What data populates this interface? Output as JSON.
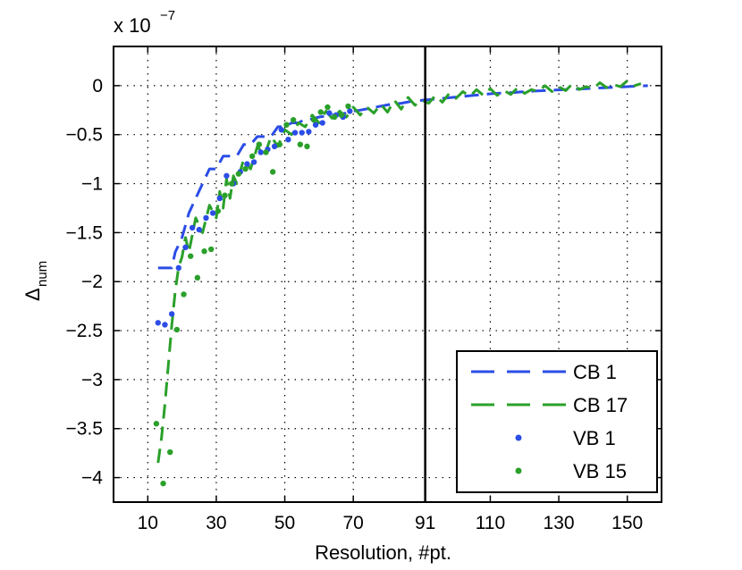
{
  "chart_data": {
    "type": "line",
    "title": "",
    "xlabel": "Resolution, #pt.",
    "ylabel_main": "Δ",
    "ylabel_sub": "num",
    "exponent_label": {
      "base": "x 10",
      "power": "−7"
    },
    "xlim": [
      0,
      160
    ],
    "ylim": [
      -4.25,
      0.4
    ],
    "x_ticks": [
      10,
      30,
      50,
      70,
      91,
      110,
      130,
      150
    ],
    "x_tick_labels": [
      "10",
      "30",
      "50",
      "70",
      "91",
      "110",
      "130",
      "150"
    ],
    "y_ticks": [
      0,
      -0.5,
      -1,
      -1.5,
      -2,
      -2.5,
      -3,
      -3.5,
      -4
    ],
    "y_tick_labels": [
      "0",
      "−0.5",
      "−1",
      "−1.5",
      "−2",
      "−2.5",
      "−3",
      "−3.5",
      "−4"
    ],
    "grid": true,
    "vertical_marker_x": 91,
    "legend_position": "bottom-right",
    "colors": {
      "blue": "#2b4de6",
      "green": "#2aa02a",
      "axis": "#000000"
    },
    "series": [
      {
        "name": "CB 1",
        "style": "dashed",
        "color": "#2b4de6",
        "x": [
          13,
          15,
          17,
          18,
          20,
          22,
          24,
          26,
          28,
          30,
          32,
          34,
          36,
          38,
          40,
          42,
          44,
          46,
          48,
          50,
          52,
          54,
          56,
          58,
          60,
          62,
          64,
          66,
          68,
          70,
          72,
          75,
          78,
          81,
          84,
          87,
          90,
          93,
          96,
          99,
          102,
          105,
          108,
          111,
          114,
          117,
          120,
          123,
          126,
          129,
          132,
          135,
          138,
          141,
          144,
          147,
          150,
          153,
          156
        ],
        "y": [
          -1.86,
          -1.86,
          -1.86,
          -1.7,
          -1.55,
          -1.3,
          -1.15,
          -1.0,
          -0.85,
          -0.85,
          -0.72,
          -0.72,
          -0.72,
          -0.6,
          -0.6,
          -0.52,
          -0.52,
          -0.52,
          -0.42,
          -0.42,
          -0.38,
          -0.38,
          -0.34,
          -0.34,
          -0.32,
          -0.31,
          -0.3,
          -0.29,
          -0.28,
          -0.26,
          -0.25,
          -0.23,
          -0.21,
          -0.19,
          -0.18,
          -0.16,
          -0.15,
          -0.14,
          -0.13,
          -0.12,
          -0.11,
          -0.1,
          -0.09,
          -0.08,
          -0.075,
          -0.07,
          -0.06,
          -0.055,
          -0.05,
          -0.045,
          -0.04,
          -0.035,
          -0.03,
          -0.025,
          -0.02,
          -0.015,
          -0.01,
          -0.005,
          0.0
        ]
      },
      {
        "name": "CB 17",
        "style": "dashed",
        "color": "#2aa02a",
        "x": [
          13,
          14,
          15,
          16,
          17,
          18,
          19,
          20,
          21,
          22,
          24,
          26,
          28,
          30,
          31,
          32,
          33,
          34,
          35,
          36,
          38,
          40,
          42,
          44,
          46,
          48,
          50,
          52,
          54,
          56,
          58,
          60,
          62,
          64,
          66,
          68,
          70,
          72,
          74,
          76,
          78,
          80,
          82,
          84,
          86,
          88,
          90,
          92,
          94,
          96,
          98,
          100,
          102,
          104,
          106,
          108,
          110,
          112,
          114,
          116,
          118,
          120,
          122,
          124,
          126,
          128,
          130,
          132,
          134,
          136,
          138,
          140,
          142,
          144,
          146,
          148,
          150,
          152,
          154
        ],
        "y": [
          -3.85,
          -3.6,
          -3.25,
          -2.85,
          -2.45,
          -2.1,
          -1.85,
          -1.75,
          -1.55,
          -1.7,
          -1.35,
          -1.5,
          -1.22,
          -1.35,
          -1.08,
          -1.25,
          -0.95,
          -1.15,
          -0.92,
          -1.0,
          -0.75,
          -0.85,
          -0.62,
          -0.72,
          -0.52,
          -0.62,
          -0.45,
          -0.5,
          -0.38,
          -0.42,
          -0.3,
          -0.38,
          -0.26,
          -0.34,
          -0.26,
          -0.32,
          -0.22,
          -0.3,
          -0.22,
          -0.28,
          -0.19,
          -0.27,
          -0.15,
          -0.24,
          -0.12,
          -0.2,
          -0.15,
          -0.18,
          -0.1,
          -0.17,
          -0.08,
          -0.13,
          -0.06,
          -0.11,
          -0.04,
          -0.1,
          -0.03,
          -0.1,
          -0.05,
          -0.09,
          -0.02,
          -0.08,
          -0.04,
          -0.06,
          0.0,
          -0.06,
          -0.01,
          -0.05,
          0.02,
          -0.04,
          -0.01,
          -0.03,
          0.03,
          -0.02,
          0.01,
          -0.01,
          0.05,
          0.0,
          0.02
        ]
      },
      {
        "name": "VB 1",
        "style": "markers",
        "color": "#2b4de6",
        "x": [
          13,
          15,
          17,
          19,
          21,
          23,
          25,
          27,
          29,
          31,
          33,
          35,
          37,
          39,
          41,
          43,
          45,
          47,
          49,
          51,
          53,
          55,
          57,
          59,
          61,
          63,
          65,
          67,
          69
        ],
        "y": [
          -2.42,
          -2.44,
          -2.33,
          -1.86,
          -1.65,
          -1.45,
          -1.47,
          -1.35,
          -1.3,
          -1.15,
          -0.92,
          -1.0,
          -0.88,
          -0.8,
          -0.78,
          -0.68,
          -0.65,
          -0.62,
          -0.45,
          -0.55,
          -0.48,
          -0.48,
          -0.47,
          -0.4,
          -0.38,
          -0.28,
          -0.3,
          -0.32,
          -0.26
        ]
      },
      {
        "name": "VB 15",
        "style": "markers",
        "color": "#2aa02a",
        "x": [
          12.5,
          14.5,
          16.5,
          18.5,
          20.5,
          22.5,
          24.5,
          26.5,
          28.5,
          30.5,
          32.5,
          34.5,
          36.5,
          38.5,
          40.5,
          42.5,
          44.5,
          46.5,
          48.5,
          50.5,
          52.5,
          54.5,
          56.5,
          58.5,
          60.5,
          62.5,
          64.5,
          66.5,
          68.5
        ],
        "y": [
          -3.45,
          -4.06,
          -3.74,
          -2.49,
          -2.13,
          -1.74,
          -1.96,
          -1.69,
          -1.67,
          -1.28,
          -1.12,
          -1.0,
          -0.9,
          -0.85,
          -0.72,
          -0.6,
          -0.68,
          -0.88,
          -0.6,
          -0.4,
          -0.35,
          -0.6,
          -0.62,
          -0.35,
          -0.27,
          -0.22,
          -0.32,
          -0.3,
          -0.21
        ]
      }
    ]
  }
}
